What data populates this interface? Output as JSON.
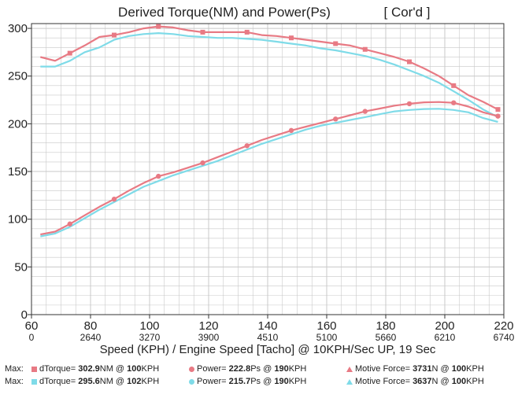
{
  "chart_data": {
    "type": "line",
    "title": "Derived Torque(NM) and Power(Ps)",
    "subtitle": "[ Cor'd ]",
    "xlabel": "Speed (KPH) / Engine Speed [Tacho] @ 10KPH/Sec UP, 19 Sec",
    "xlim": [
      60,
      220
    ],
    "ylim": [
      0,
      305
    ],
    "x_ticks": [
      "60",
      "80",
      "100",
      "120",
      "140",
      "160",
      "180",
      "200",
      "220"
    ],
    "x_ticks_values": [
      60,
      80,
      100,
      120,
      140,
      160,
      180,
      200,
      220
    ],
    "tacho_ticks": [
      "0",
      "2640",
      "3270",
      "3900",
      "4510",
      "5100",
      "5660",
      "6210",
      "6740"
    ],
    "y_ticks": [
      "0",
      "50",
      "100",
      "150",
      "200",
      "250",
      "300"
    ],
    "y_ticks_values": [
      0,
      50,
      100,
      150,
      200,
      250,
      300
    ],
    "grid": true,
    "colors": {
      "red": "#e87a84",
      "cyan": "#7fdbe8",
      "grid": "#c8c8c8",
      "axis": "#333333"
    },
    "series": [
      {
        "name": "dTorque",
        "run": "red",
        "x": [
          63,
          68,
          73,
          78,
          83,
          88,
          93,
          98,
          103,
          108,
          113,
          118,
          123,
          128,
          133,
          138,
          143,
          148,
          153,
          158,
          163,
          168,
          173,
          178,
          183,
          188,
          193,
          198,
          203,
          208,
          213,
          218
        ],
        "y": [
          270,
          266,
          274,
          282,
          291,
          293,
          296,
          300,
          302,
          301,
          298,
          296,
          296,
          296,
          296,
          293,
          292,
          290,
          288,
          286,
          284,
          282,
          278,
          274,
          270,
          265,
          258,
          250,
          240,
          230,
          223,
          215
        ]
      },
      {
        "name": "dTorque",
        "run": "cyan",
        "x": [
          63,
          68,
          73,
          78,
          83,
          88,
          93,
          98,
          103,
          108,
          113,
          118,
          123,
          128,
          133,
          138,
          143,
          148,
          153,
          158,
          163,
          168,
          173,
          178,
          183,
          188,
          193,
          198,
          203,
          208,
          213,
          218
        ],
        "y": [
          260,
          260,
          266,
          275,
          280,
          288,
          292,
          294,
          295,
          294,
          292,
          291,
          290,
          290,
          289,
          288,
          286,
          284,
          282,
          279,
          277,
          274,
          271,
          267,
          262,
          256,
          250,
          243,
          234,
          225,
          215,
          207
        ]
      },
      {
        "name": "Power",
        "run": "red",
        "x": [
          63,
          68,
          73,
          78,
          83,
          88,
          93,
          98,
          103,
          108,
          113,
          118,
          123,
          128,
          133,
          138,
          143,
          148,
          153,
          158,
          163,
          168,
          173,
          178,
          183,
          188,
          193,
          198,
          203,
          208,
          213,
          218
        ],
        "y": [
          84,
          87,
          95,
          104,
          113,
          121,
          130,
          138,
          145,
          149,
          154,
          159,
          165,
          171,
          177,
          183,
          188,
          193,
          197,
          201,
          205,
          209,
          213,
          216,
          219,
          221,
          222.5,
          222.8,
          222,
          218,
          212,
          208
        ]
      },
      {
        "name": "Power",
        "run": "cyan",
        "x": [
          63,
          68,
          73,
          78,
          83,
          88,
          93,
          98,
          103,
          108,
          113,
          118,
          123,
          128,
          133,
          138,
          143,
          148,
          153,
          158,
          163,
          168,
          173,
          178,
          183,
          188,
          193,
          198,
          203,
          208,
          213,
          218
        ],
        "y": [
          82,
          85,
          92,
          101,
          110,
          118,
          126,
          134,
          140,
          146,
          151,
          156,
          161,
          167,
          173,
          179,
          184,
          189,
          194,
          198,
          201,
          204,
          207,
          210,
          213,
          214.5,
          215.5,
          215.7,
          214.5,
          212,
          206,
          202
        ]
      }
    ],
    "markers": {
      "red_torque_x": [
        73,
        88,
        103,
        118,
        133,
        148,
        163,
        173,
        188,
        203,
        218
      ],
      "red_power_x": [
        73,
        88,
        103,
        118,
        133,
        148,
        163,
        173,
        188,
        203,
        218
      ]
    }
  },
  "legend": {
    "row1": {
      "max_label": "Max:",
      "torque_label": "dTorque= ",
      "torque_value": "302.9",
      "torque_unit": "NM @ ",
      "torque_speed": "100",
      "torque_speed_unit": "KPH",
      "power_label": "Power= ",
      "power_value": "222.8",
      "power_unit": "Ps @ ",
      "power_speed": "190",
      "power_speed_unit": "KPH",
      "force_label": "Motive Force= ",
      "force_value": "3731",
      "force_unit": "N @ ",
      "force_speed": "100",
      "force_speed_unit": "KPH"
    },
    "row2": {
      "max_label": "Max:",
      "torque_label": "dTorque= ",
      "torque_value": "295.6",
      "torque_unit": "NM @ ",
      "torque_speed": "102",
      "torque_speed_unit": "KPH",
      "power_label": "Power= ",
      "power_value": "215.7",
      "power_unit": "Ps @ ",
      "power_speed": "190",
      "power_speed_unit": "KPH",
      "force_label": "Motive Force= ",
      "force_value": "3637",
      "force_unit": "N @ ",
      "force_speed": "100",
      "force_speed_unit": "KPH"
    }
  }
}
